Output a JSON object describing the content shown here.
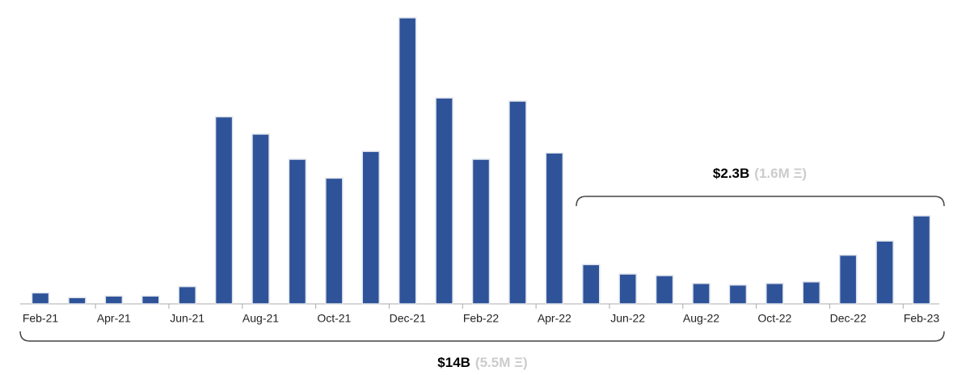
{
  "chart_data": {
    "type": "bar",
    "categories": [
      "Feb-21",
      null,
      "Apr-21",
      null,
      "Jun-21",
      null,
      "Aug-21",
      null,
      "Oct-21",
      null,
      "Dec-21",
      null,
      "Feb-22",
      null,
      "Apr-22",
      null,
      "Jun-22",
      null,
      "Aug-22",
      null,
      "Oct-22",
      null,
      "Dec-22",
      null,
      "Feb-23"
    ],
    "values": [
      0.07,
      0.04,
      0.05,
      0.05,
      0.11,
      1.19,
      1.08,
      0.92,
      0.8,
      0.97,
      1.82,
      1.31,
      0.92,
      1.29,
      0.96,
      0.25,
      0.19,
      0.18,
      0.13,
      0.12,
      0.13,
      0.14,
      0.31,
      0.4,
      0.56
    ],
    "color": "#2e5399",
    "annotations": [
      {
        "text": "$2.3B",
        "note": "(1.6M Ξ)"
      },
      {
        "text": "$14B",
        "note": "(5.5M Ξ)"
      }
    ]
  }
}
